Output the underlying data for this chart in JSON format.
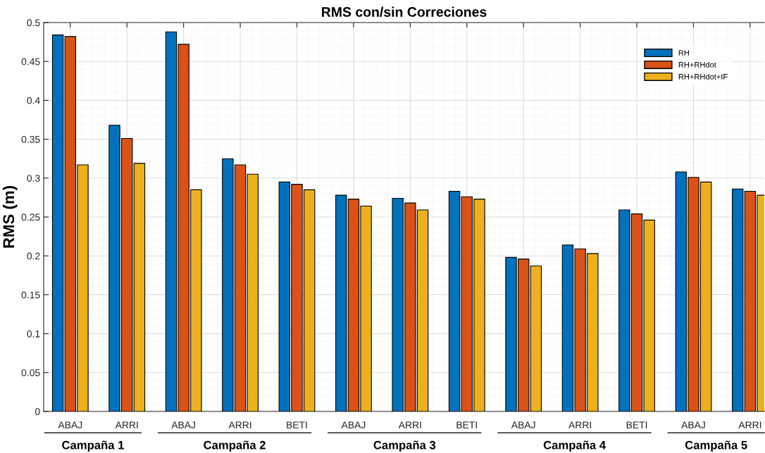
{
  "chart_data": {
    "type": "bar",
    "title": "RMS con/sin Correciones",
    "ylabel": "RMS (m)",
    "categories": [
      "ABAJ",
      "ARRI",
      "ABAJ",
      "ARRI",
      "BETI",
      "ABAJ",
      "ARRI",
      "BETI",
      "ABAJ",
      "ARRI",
      "BETI",
      "ABAJ",
      "ARRI"
    ],
    "series": [
      {
        "name": "RH",
        "color": "#0072bd",
        "values": [
          0.484,
          0.368,
          0.488,
          0.325,
          0.295,
          0.278,
          0.274,
          0.283,
          0.198,
          0.214,
          0.259,
          0.308,
          0.286
        ]
      },
      {
        "name": "RH+RHdot",
        "color": "#d95319",
        "values": [
          0.482,
          0.351,
          0.472,
          0.317,
          0.292,
          0.273,
          0.268,
          0.276,
          0.196,
          0.209,
          0.254,
          0.301,
          0.283
        ]
      },
      {
        "name": "RH+RHdot+IF",
        "color": "#edb120",
        "values": [
          0.317,
          0.319,
          0.285,
          0.305,
          0.285,
          0.264,
          0.259,
          0.273,
          0.187,
          0.203,
          0.246,
          0.295,
          0.278
        ]
      }
    ],
    "ylim": [
      0,
      0.5
    ],
    "yticks": [
      0,
      0.05,
      0.1,
      0.15,
      0.2,
      0.25,
      0.3,
      0.35,
      0.4,
      0.45,
      0.5
    ],
    "annotations": [
      "Campaña 1",
      "Campaña 2",
      "Campaña 3",
      "Campaña 4",
      "Campaña 5"
    ],
    "grid": true,
    "legend": "top right"
  }
}
